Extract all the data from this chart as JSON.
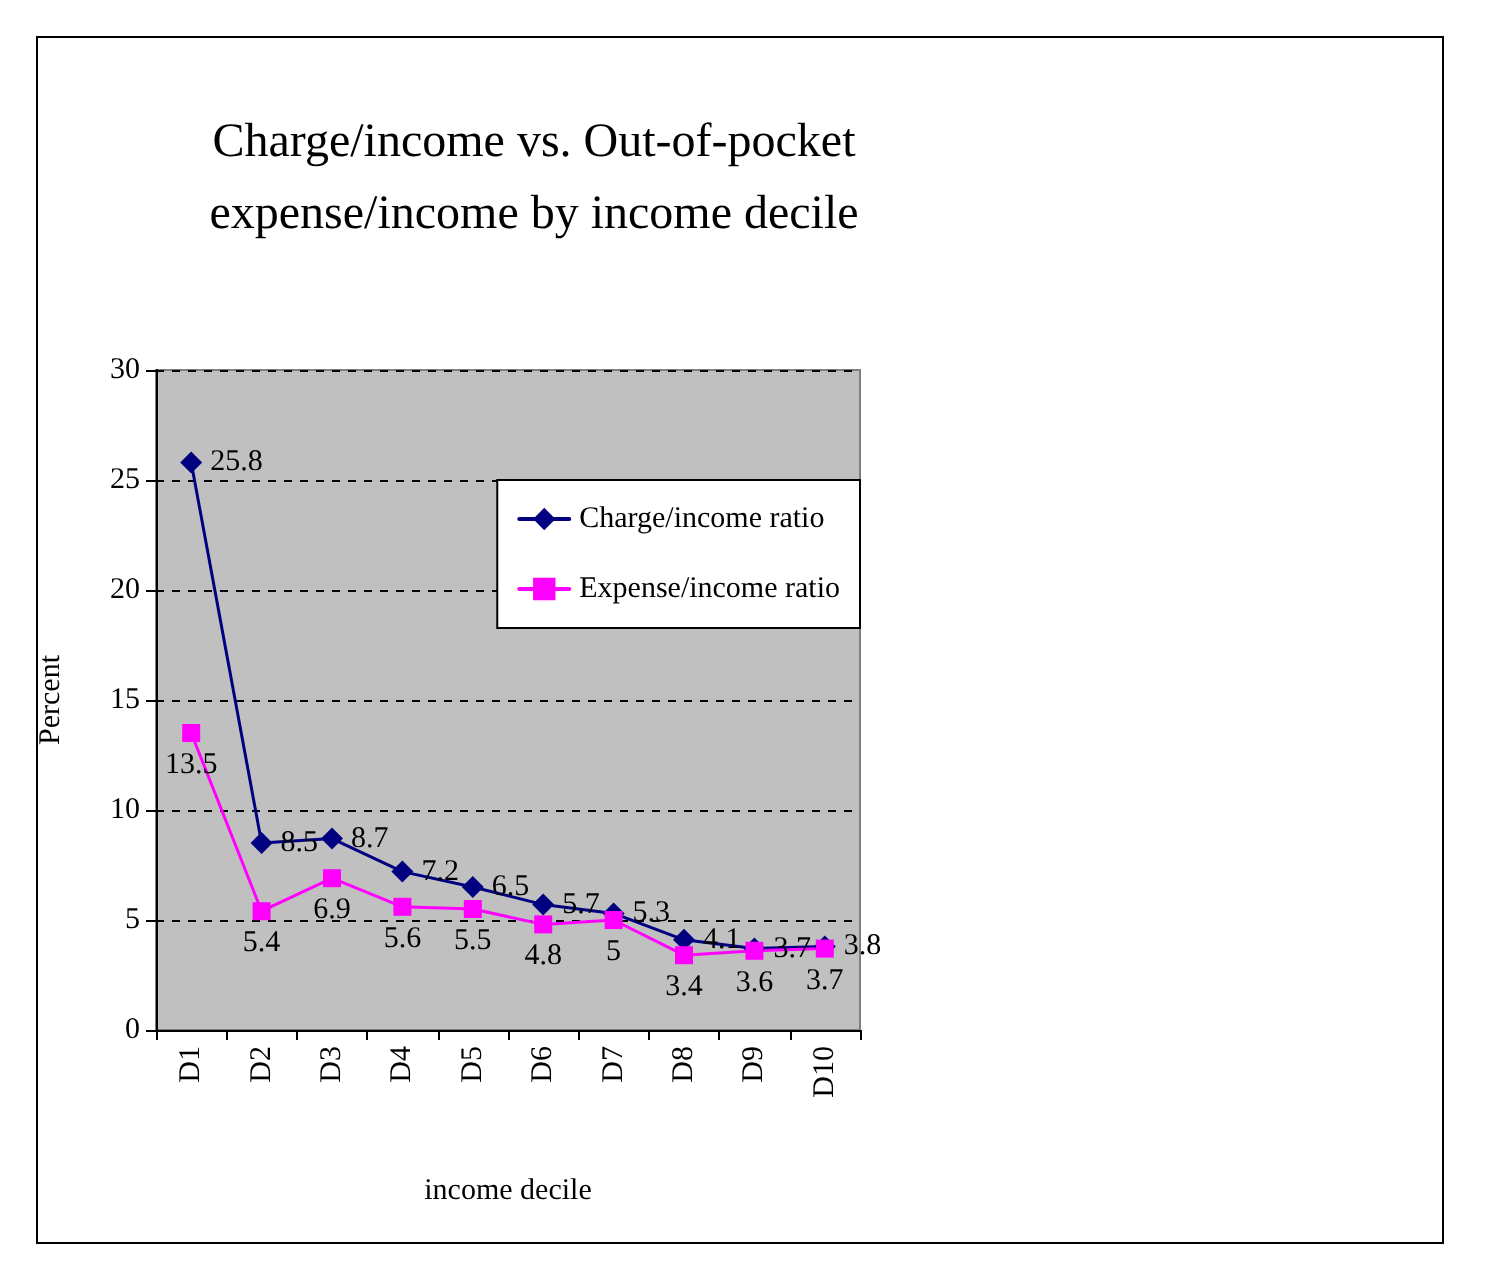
{
  "chart_data": {
    "type": "line",
    "title": "Charge/income vs. Out-of-pocket\nexpense/income by income decile",
    "xlabel": "income decile",
    "ylabel": "Percent",
    "categories": [
      "D1",
      "D2",
      "D3",
      "D4",
      "D5",
      "D6",
      "D7",
      "D8",
      "D9",
      "D10"
    ],
    "series": [
      {
        "name": "Charge/income ratio",
        "color": "#000080",
        "marker": "diamond",
        "values": [
          25.8,
          8.5,
          8.7,
          7.2,
          6.5,
          5.7,
          5.3,
          4.1,
          3.7,
          3.8
        ]
      },
      {
        "name": "Expense/income ratio",
        "color": "#ff00ff",
        "marker": "square",
        "values": [
          13.5,
          5.4,
          6.9,
          5.6,
          5.5,
          4.8,
          5,
          3.4,
          3.6,
          3.7
        ]
      }
    ],
    "ylim": [
      0,
      30
    ],
    "yticks": [
      0,
      5,
      10,
      15,
      20,
      25,
      30
    ],
    "grid": "y",
    "legend": "top right",
    "data_labels": true,
    "line_style": "solid"
  }
}
